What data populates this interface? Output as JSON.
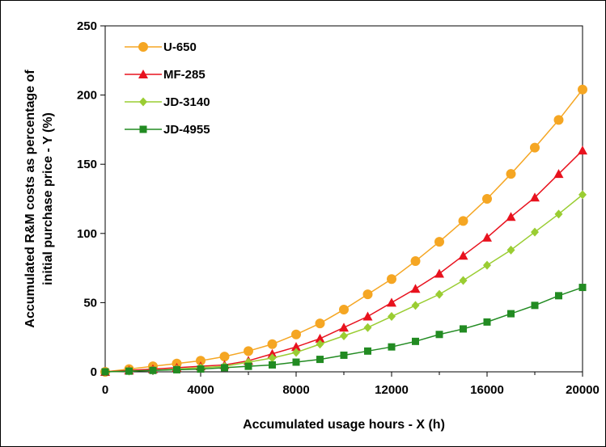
{
  "chart_data": {
    "type": "line",
    "title": "",
    "xlabel": "Accumulated usage hours - X (h)",
    "ylabel_lines": [
      "Accumulated R&M costs as percentage of",
      "initial purchase price - Y (%)"
    ],
    "xlim": [
      0,
      20000
    ],
    "ylim": [
      0,
      250
    ],
    "xticks": [
      "0",
      "4000",
      "8000",
      "12000",
      "16000",
      "20000"
    ],
    "yticks": [
      "0",
      "50",
      "100",
      "150",
      "200",
      "250"
    ],
    "grid": false,
    "legend_position": "top-left",
    "x": [
      0,
      1000,
      2000,
      3000,
      4000,
      5000,
      6000,
      7000,
      8000,
      9000,
      10000,
      11000,
      12000,
      13000,
      14000,
      15000,
      16000,
      17000,
      18000,
      19000,
      20000
    ],
    "series": [
      {
        "name": "U-650",
        "color": "#f5a623",
        "marker": "circle",
        "values": [
          0,
          2,
          4,
          6,
          8,
          11,
          15,
          20,
          27,
          35,
          45,
          56,
          67,
          80,
          94,
          109,
          125,
          143,
          162,
          182,
          204
        ]
      },
      {
        "name": "MF-285",
        "color": "#e8121e",
        "marker": "triangle",
        "values": [
          0,
          1,
          2,
          3,
          4,
          5,
          8,
          13,
          18,
          24,
          32,
          40,
          50,
          60,
          71,
          84,
          97,
          112,
          126,
          143,
          160
        ]
      },
      {
        "name": "JD-3140",
        "color": "#9acd32",
        "marker": "diamond",
        "values": [
          0,
          0.5,
          1,
          2,
          3,
          4,
          7,
          10,
          14,
          20,
          26,
          32,
          40,
          48,
          56,
          66,
          77,
          88,
          101,
          114,
          128
        ]
      },
      {
        "name": "JD-4955",
        "color": "#228b22",
        "marker": "square",
        "values": [
          0,
          0.5,
          1,
          1.5,
          2,
          3,
          4,
          5,
          7,
          9,
          12,
          15,
          18,
          22,
          27,
          31,
          36,
          42,
          48,
          55,
          61
        ]
      }
    ]
  }
}
